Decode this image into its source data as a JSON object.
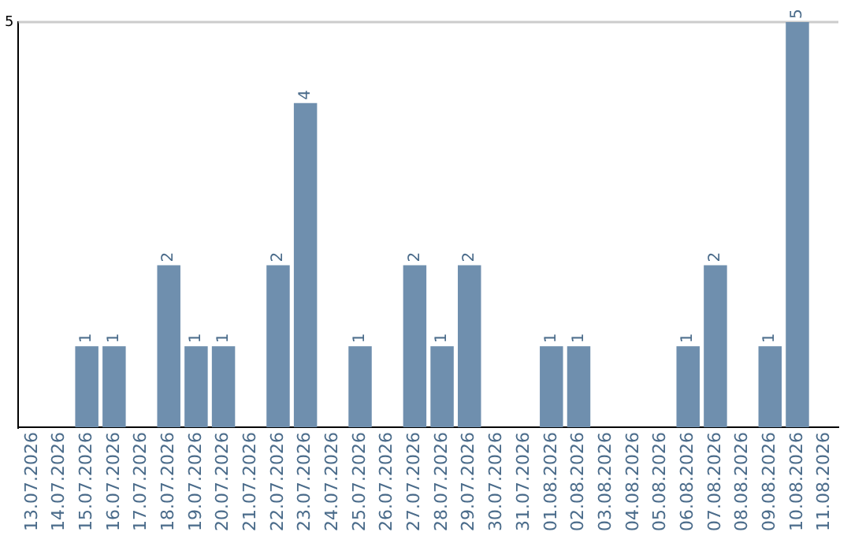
{
  "chart_data": {
    "type": "bar",
    "categories": [
      "13.07.2026",
      "14.07.2026",
      "15.07.2026",
      "16.07.2026",
      "17.07.2026",
      "18.07.2026",
      "19.07.2026",
      "20.07.2026",
      "21.07.2026",
      "22.07.2026",
      "23.07.2026",
      "24.07.2026",
      "25.07.2026",
      "26.07.2026",
      "27.07.2026",
      "28.07.2026",
      "29.07.2026",
      "30.07.2026",
      "31.07.2026",
      "01.08.2026",
      "02.08.2026",
      "03.08.2026",
      "04.08.2026",
      "05.08.2026",
      "06.08.2026",
      "07.08.2026",
      "08.08.2026",
      "09.08.2026",
      "10.08.2026",
      "11.08.2026"
    ],
    "values": [
      0,
      0,
      1,
      1,
      0,
      2,
      1,
      1,
      0,
      2,
      4,
      0,
      1,
      0,
      2,
      1,
      2,
      0,
      0,
      1,
      1,
      0,
      0,
      0,
      1,
      2,
      0,
      1,
      5,
      0
    ],
    "value_labels": [
      null,
      null,
      "1",
      "1",
      null,
      "2",
      "1",
      "1",
      null,
      "2",
      "4",
      null,
      "1",
      null,
      "2",
      "1",
      "2",
      null,
      null,
      "1",
      "1",
      null,
      null,
      null,
      "1",
      "2",
      null,
      "1",
      "5",
      null
    ],
    "color": "#6f8fae",
    "ylim": [
      0,
      5
    ],
    "yticks": [
      5
    ],
    "ref_lines": [
      {
        "axis": "y",
        "value": 5,
        "color": "#cccccc",
        "line_style": "solid"
      }
    ]
  }
}
